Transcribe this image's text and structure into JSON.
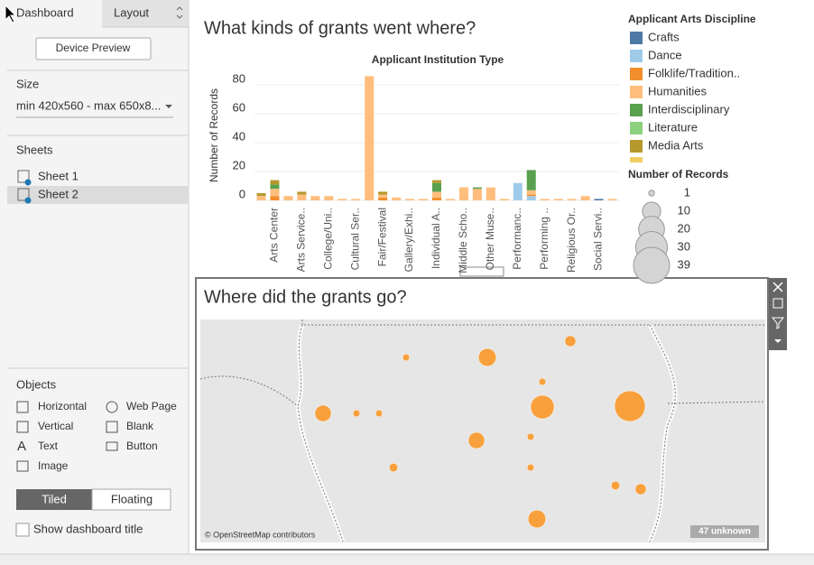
{
  "sidebar": {
    "tabs": [
      "Dashboard",
      "Layout"
    ],
    "device_preview": "Device Preview",
    "size_heading": "Size",
    "size_value": "min 420x560 - max 650x8...",
    "sheets_heading": "Sheets",
    "sheets": [
      "Sheet 1",
      "Sheet 2"
    ],
    "objects_heading": "Objects",
    "objects": [
      "Horizontal",
      "Web Page",
      "Vertical",
      "Blank",
      "Text",
      "Button",
      "Image"
    ],
    "layout_modes": [
      "Tiled",
      "Floating"
    ],
    "show_title": "Show dashboard title"
  },
  "dashboard": {
    "title": "What kinds of grants went where?"
  },
  "chart_data": {
    "type": "bar",
    "stacked": true,
    "title": "Applicant Institution Type",
    "y_label": "Number of Records",
    "categories": [
      null,
      "Arts Center",
      null,
      "Arts Service..",
      null,
      "College/Uni..",
      null,
      "Cultural Ser..",
      null,
      "Fair/Festival",
      null,
      "Gallery/Exhi..",
      null,
      "Individual A..",
      null,
      "Middle Scho..",
      null,
      "Other Muse..",
      null,
      "Performanc..",
      null,
      "Performing ..",
      null,
      "Religious Or..",
      null,
      "Social Servi..",
      null
    ],
    "legend_title": "Applicant Arts Discipline",
    "series": [
      {
        "name": "Crafts",
        "color": "#4e79a7",
        "values": [
          0,
          0,
          0,
          0,
          0,
          0,
          0,
          0,
          0,
          0,
          0,
          0,
          0,
          0,
          0,
          0,
          0,
          0,
          0,
          0,
          0,
          0,
          0,
          0,
          0,
          1,
          0
        ]
      },
      {
        "name": "Dance",
        "color": "#a0cbe8",
        "values": [
          0,
          0,
          0,
          0,
          0,
          0,
          0,
          0,
          0,
          0,
          0,
          0,
          0,
          0,
          0,
          0,
          0,
          0,
          0,
          12,
          3,
          0,
          0,
          0,
          0,
          0,
          0
        ]
      },
      {
        "name": "Folklife/Tradition..",
        "color": "#f28e2b",
        "values": [
          0,
          3,
          0,
          0,
          0,
          0,
          0,
          0,
          0,
          2,
          0,
          0,
          0,
          2,
          0,
          0,
          0,
          0,
          0,
          0,
          1,
          0,
          0,
          0,
          0,
          0,
          0
        ]
      },
      {
        "name": "Humanities",
        "color": "#ffbe7d",
        "values": [
          3,
          5,
          3,
          4,
          3,
          3,
          1,
          1,
          86,
          2,
          2,
          1,
          1,
          4,
          1,
          9,
          8,
          9,
          1,
          0,
          3,
          1,
          1,
          1,
          3,
          0,
          1
        ]
      },
      {
        "name": "Interdisciplinary",
        "color": "#59a14f",
        "values": [
          0,
          3,
          0,
          0,
          0,
          0,
          0,
          0,
          0,
          0,
          0,
          0,
          0,
          6,
          0,
          0,
          1,
          0,
          0,
          0,
          14,
          0,
          0,
          0,
          0,
          0,
          0
        ]
      },
      {
        "name": "Literature",
        "color": "#8cd17d",
        "values": [
          0,
          0,
          0,
          0,
          0,
          0,
          0,
          0,
          0,
          0,
          0,
          0,
          0,
          0,
          0,
          0,
          0,
          0,
          0,
          0,
          0,
          0,
          0,
          0,
          0,
          0,
          0
        ]
      },
      {
        "name": "Media Arts",
        "color": "#b6992d",
        "values": [
          2,
          3,
          0,
          2,
          0,
          0,
          0,
          0,
          0,
          2,
          0,
          0,
          0,
          2,
          0,
          0,
          0,
          0,
          0,
          0,
          0,
          0,
          0,
          0,
          0,
          0,
          0
        ]
      }
    ],
    "ylim": [
      0,
      90
    ],
    "yticks": [
      0,
      20,
      40,
      60,
      80
    ],
    "grid": true
  },
  "size_legend": {
    "title": "Number of Records",
    "values": [
      1,
      10,
      20,
      30,
      39
    ]
  },
  "map": {
    "title": "Where did the grants go?",
    "attribution": "© OpenStreetMap contributors",
    "unknown": "47 unknown",
    "color": "#f7a03c",
    "values": [
      13,
      5,
      2,
      11,
      2,
      2,
      23,
      2,
      39,
      11,
      2,
      2,
      3,
      13,
      3,
      5
    ]
  }
}
